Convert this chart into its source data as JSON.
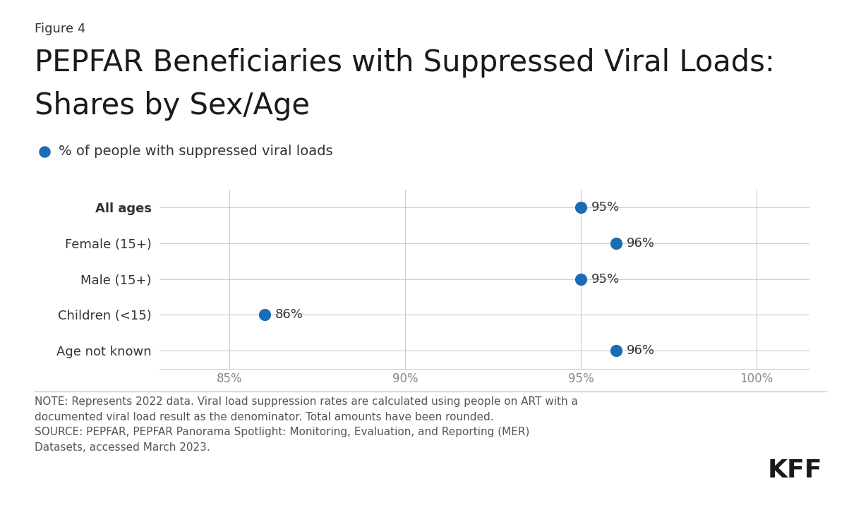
{
  "figure_label": "Figure 4",
  "title_line1": "PEPFAR Beneficiaries with Suppressed Viral Loads:",
  "title_line2": "Shares by Sex/Age",
  "legend_label": "% of people with suppressed viral loads",
  "categories": [
    "All ages",
    "Female (15+)",
    "Male (15+)",
    "Children (<15)",
    "Age not known"
  ],
  "values": [
    95,
    96,
    95,
    86,
    96
  ],
  "labels": [
    "95%",
    "96%",
    "95%",
    "86%",
    "96%"
  ],
  "bold_idx": 0,
  "dot_color": "#1a6cb5",
  "xlim": [
    83.0,
    101.5
  ],
  "xticks": [
    85,
    90,
    95,
    100
  ],
  "xtick_labels": [
    "85%",
    "90%",
    "95%",
    "100%"
  ],
  "background_color": "#ffffff",
  "grid_color": "#cccccc",
  "note_text": "NOTE: Represents 2022 data. Viral load suppression rates are calculated using people on ART with a\ndocumented viral load result as the denominator. Total amounts have been rounded.\nSOURCE: PEPFAR, PEPFAR Panorama Spotlight: Monitoring, Evaluation, and Reporting (MER)\nDatasets, accessed March 2023.",
  "kff_text": "KFF",
  "title_fontsize": 30,
  "figure_label_fontsize": 13,
  "legend_fontsize": 14,
  "category_fontsize": 13,
  "tick_fontsize": 12,
  "note_fontsize": 11,
  "kff_fontsize": 26,
  "dot_size": 130,
  "label_fontsize": 13,
  "text_color": "#333333",
  "tick_color": "#888888"
}
